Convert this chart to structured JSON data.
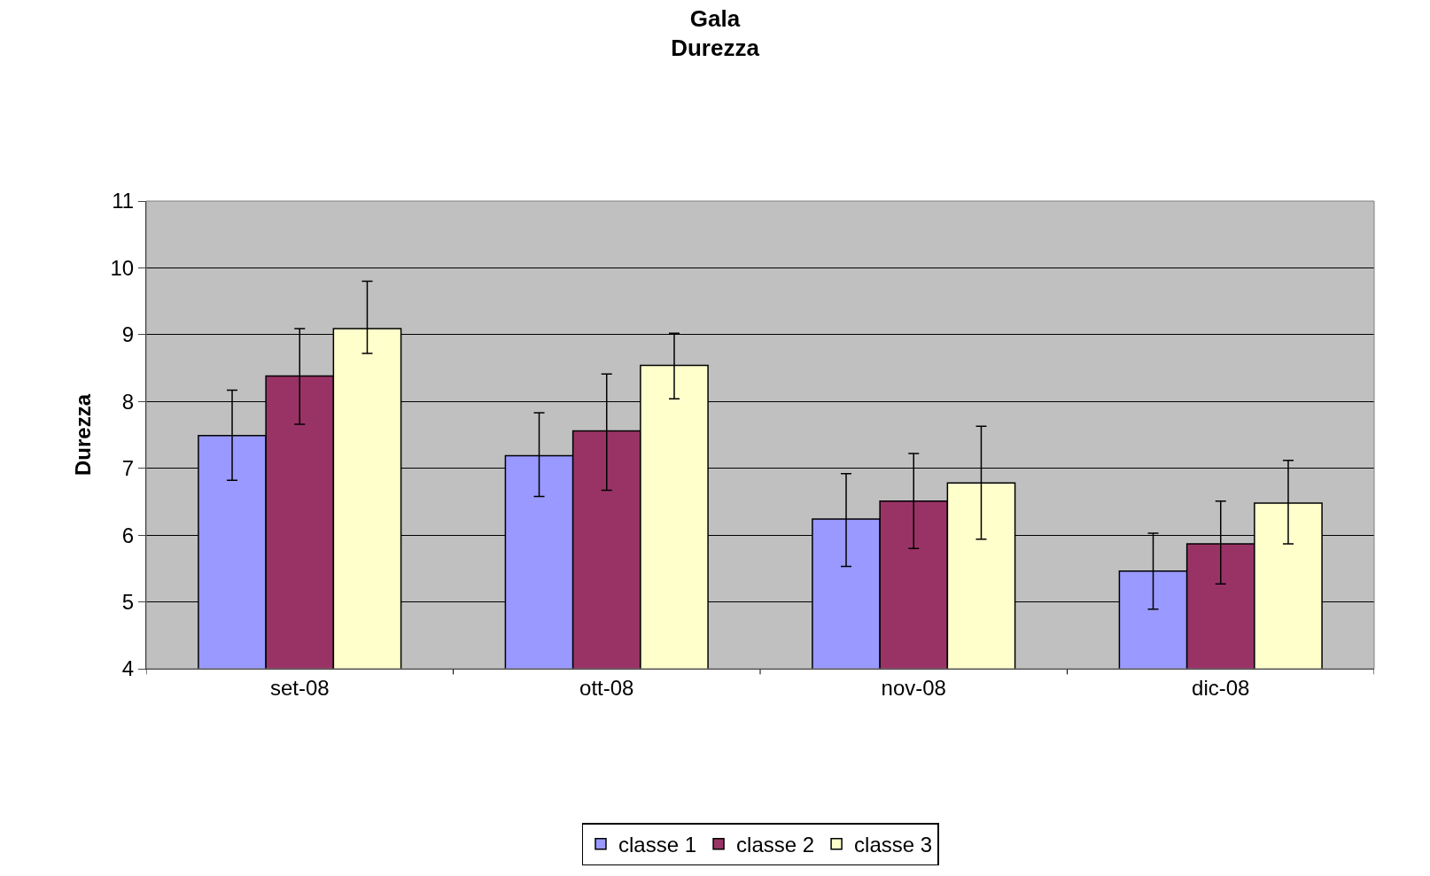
{
  "chart_data": {
    "type": "bar",
    "title": "Gala",
    "subtitle": "Durezza",
    "ylabel": "Durezza",
    "categories": [
      "set-08",
      "ott-08",
      "nov-08",
      "dic-08"
    ],
    "series": [
      {
        "name": "classe 1",
        "color": "#9999ff",
        "values": [
          7.49,
          7.19,
          6.24,
          5.46
        ],
        "errors": [
          [
            6.82,
            8.17
          ],
          [
            6.58,
            7.83
          ],
          [
            5.53,
            6.92
          ],
          [
            4.89,
            6.03
          ]
        ]
      },
      {
        "name": "classe 2",
        "color": "#993366",
        "values": [
          8.38,
          7.56,
          6.51,
          5.87
        ],
        "errors": [
          [
            7.66,
            9.09
          ],
          [
            6.67,
            8.41
          ],
          [
            5.8,
            7.22
          ],
          [
            5.27,
            6.51
          ]
        ]
      },
      {
        "name": "classe 3",
        "color": "#ffffcc",
        "values": [
          9.09,
          8.54,
          6.78,
          6.48
        ],
        "errors": [
          [
            8.72,
            9.8
          ],
          [
            8.04,
            9.02
          ],
          [
            5.94,
            7.63
          ],
          [
            5.87,
            7.12
          ]
        ]
      }
    ],
    "ylim": [
      4,
      11
    ],
    "yticks": [
      4,
      5,
      6,
      7,
      8,
      9,
      10,
      11
    ],
    "grid": "y",
    "legend": "bottom"
  }
}
